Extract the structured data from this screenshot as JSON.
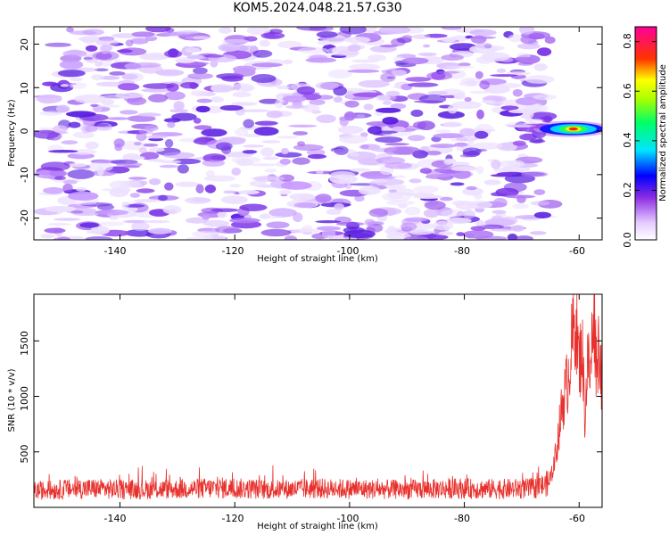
{
  "title": "KOM5.2024.048.21.57.G30",
  "chart_data": [
    {
      "type": "heatmap",
      "xlabel": "Height of straight line (km)",
      "ylabel": "Frequency (Hz)",
      "xlim": [
        -155,
        -56
      ],
      "ylim": [
        -25,
        24
      ],
      "xticks": [
        -140,
        -120,
        -100,
        -80,
        -60
      ],
      "yticks": [
        -20,
        -10,
        0,
        10,
        20
      ],
      "x_labels": [
        "-140",
        "-120",
        "-100",
        "-80",
        "-60"
      ],
      "y_labels": [
        "-20",
        "-10",
        "0",
        "10",
        "20"
      ],
      "data_extent_x": [
        -153,
        -65
      ],
      "peak": {
        "x": -61,
        "y": 0.5,
        "value": 0.85
      },
      "colorbar": {
        "label": "Normalized spectral amplitude",
        "range": [
          0.0,
          0.86
        ],
        "ticks": [
          0.0,
          0.2,
          0.4,
          0.6,
          0.8
        ],
        "tick_labels": [
          "0.0",
          "0.2",
          "0.4",
          "0.6",
          "0.8"
        ],
        "colormap": "rainbow"
      }
    },
    {
      "type": "line",
      "xlabel": "Height of straight line (km)",
      "ylabel": "SNR (10 * v/v)",
      "xlim": [
        -155,
        -56
      ],
      "ylim": [
        0,
        1920
      ],
      "xticks": [
        -140,
        -120,
        -100,
        -80,
        -60
      ],
      "yticks": [
        500,
        1000,
        1500
      ],
      "x_labels": [
        "-140",
        "-120",
        "-100",
        "-80",
        "-60"
      ],
      "y_labels": [
        "500",
        "1000",
        "1500"
      ],
      "series_color": "#e8302c",
      "points": [
        [
          -155,
          150
        ],
        [
          -146,
          170
        ],
        [
          -138,
          160
        ],
        [
          -130,
          165
        ],
        [
          -122,
          175
        ],
        [
          -114,
          160
        ],
        [
          -106,
          170
        ],
        [
          -98,
          165
        ],
        [
          -90,
          160
        ],
        [
          -82,
          170
        ],
        [
          -74,
          165
        ],
        [
          -68,
          170
        ],
        [
          -66,
          200
        ],
        [
          -65,
          240
        ],
        [
          -64,
          500
        ],
        [
          -63,
          900
        ],
        [
          -62,
          1150
        ],
        [
          -61,
          1580
        ],
        [
          -60.5,
          1700
        ],
        [
          -60,
          1250
        ],
        [
          -59.5,
          1500
        ],
        [
          -59,
          800
        ],
        [
          -58.5,
          1350
        ],
        [
          -58,
          1150
        ],
        [
          -57.5,
          1920
        ],
        [
          -57,
          1300
        ],
        [
          -56.5,
          1500
        ],
        [
          -56,
          1100
        ]
      ]
    }
  ]
}
